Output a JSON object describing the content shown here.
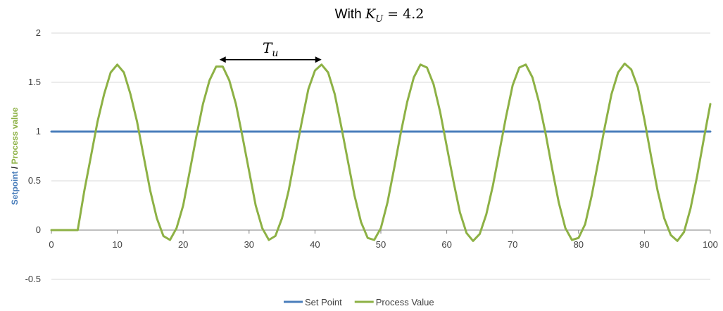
{
  "chart_data": {
    "type": "line",
    "title": {
      "prefix": "With ",
      "var": "K",
      "sub": "U",
      "rest": " = 4.2"
    },
    "ylabel": {
      "part1": "Setpoint",
      "sep": " / ",
      "part2": "Process value"
    },
    "xlabel": "",
    "xlim": [
      0,
      100
    ],
    "ylim": [
      -0.5,
      2
    ],
    "xticks": [
      0,
      10,
      20,
      30,
      40,
      50,
      60,
      70,
      80,
      90,
      100
    ],
    "xtick_labels": [
      "0",
      "10",
      "20",
      "30",
      "40",
      "50",
      "60",
      "70",
      "80",
      "90",
      "100"
    ],
    "yticks": [
      -0.5,
      0,
      0.5,
      1,
      1.5,
      2
    ],
    "ytick_labels": [
      "-0.5",
      "0",
      "0.5",
      "1",
      "1.5",
      "2"
    ],
    "grid": "horizontal",
    "legend_position": "bottom-center",
    "series": [
      {
        "name": "Set Point",
        "color": "#4a7ebb",
        "x": [
          0,
          100
        ],
        "y": [
          1,
          1
        ]
      },
      {
        "name": "Process Value",
        "color": "#8db145",
        "x": [
          0,
          1,
          2,
          3,
          4,
          5,
          6,
          7,
          8,
          9,
          10,
          11,
          12,
          13,
          14,
          15,
          16,
          17,
          18,
          19,
          20,
          21,
          22,
          23,
          24,
          25,
          26,
          27,
          28,
          29,
          30,
          31,
          32,
          33,
          34,
          35,
          36,
          37,
          38,
          39,
          40,
          41,
          42,
          43,
          44,
          45,
          46,
          47,
          48,
          49,
          50,
          51,
          52,
          53,
          54,
          55,
          56,
          57,
          58,
          59,
          60,
          61,
          62,
          63,
          64,
          65,
          66,
          67,
          68,
          69,
          70,
          71,
          72,
          73,
          74,
          75,
          76,
          77,
          78,
          79,
          80,
          81,
          82,
          83,
          84,
          85,
          86,
          87,
          88,
          89,
          90,
          91,
          92,
          93,
          94,
          95,
          96,
          97,
          98,
          99,
          100
        ],
        "y": [
          0,
          0,
          0,
          0,
          0,
          0.4,
          0.75,
          1.1,
          1.38,
          1.6,
          1.68,
          1.6,
          1.38,
          1.1,
          0.75,
          0.4,
          0.12,
          -0.06,
          -0.1,
          0.02,
          0.25,
          0.6,
          0.95,
          1.28,
          1.52,
          1.66,
          1.66,
          1.52,
          1.28,
          0.95,
          0.6,
          0.25,
          0.02,
          -0.1,
          -0.06,
          0.12,
          0.4,
          0.75,
          1.1,
          1.43,
          1.62,
          1.68,
          1.6,
          1.38,
          1.05,
          0.7,
          0.35,
          0.08,
          -0.08,
          -0.1,
          0.02,
          0.28,
          0.62,
          0.98,
          1.3,
          1.55,
          1.68,
          1.65,
          1.48,
          1.2,
          0.85,
          0.5,
          0.18,
          -0.03,
          -0.11,
          -0.04,
          0.16,
          0.45,
          0.8,
          1.15,
          1.47,
          1.65,
          1.68,
          1.55,
          1.3,
          0.98,
          0.62,
          0.28,
          0.02,
          -0.1,
          -0.08,
          0.06,
          0.35,
          0.7,
          1.05,
          1.38,
          1.6,
          1.69,
          1.63,
          1.45,
          1.12,
          0.75,
          0.4,
          0.12,
          -0.05,
          -0.11,
          -0.02,
          0.22,
          0.55,
          0.92,
          1.28
        ]
      }
    ],
    "annotation": {
      "text": "T",
      "sub": "u",
      "x_start": 25.5,
      "x_end": 41,
      "y": 1.73
    }
  }
}
